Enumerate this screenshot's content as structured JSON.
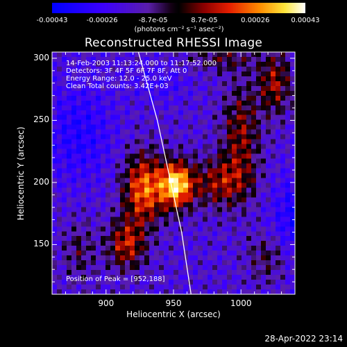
{
  "chart_data": {
    "type": "heatmap",
    "title": "Reconstructed RHESSI Image",
    "xlabel": "Heliocentric X (arcsec)",
    "ylabel": "Heliocentric Y (arcsec)",
    "xlim": [
      860,
      1040
    ],
    "ylim": [
      110,
      305
    ],
    "x_ticks": [
      900,
      950,
      1000
    ],
    "y_ticks": [
      150,
      200,
      250,
      300
    ],
    "colorbar": {
      "range": [
        -0.00043,
        0.00043
      ],
      "tick_values": [
        -0.00043,
        -0.00026,
        -8.7e-05,
        8.7e-05,
        0.00026,
        0.00043
      ],
      "tick_labels": [
        "-0.00043",
        "-0.00026",
        "-8.7e-05",
        "8.7e-05",
        "0.00026",
        "0.00043"
      ],
      "units": "(photons cm⁻² s⁻¹ asec⁻²)"
    },
    "info_lines": [
      "14-Feb-2003 11:13:24.000 to 11:17:52.000",
      "Detectors: 3F 4F 5F 6F 7F 8F, Att 0",
      "Energy Range: 12.0 - 25.0 keV",
      "Clean    Total counts: 3.42E+03"
    ],
    "peak_label": "Position of Peak = [952,188]",
    "peak_position": [
      952,
      188
    ],
    "limb_curve": [
      [
        924,
        305
      ],
      [
        938,
        250
      ],
      [
        948,
        200
      ],
      [
        956,
        160
      ],
      [
        963,
        110
      ]
    ],
    "timestamp": "28-Apr-2022 23:14"
  }
}
